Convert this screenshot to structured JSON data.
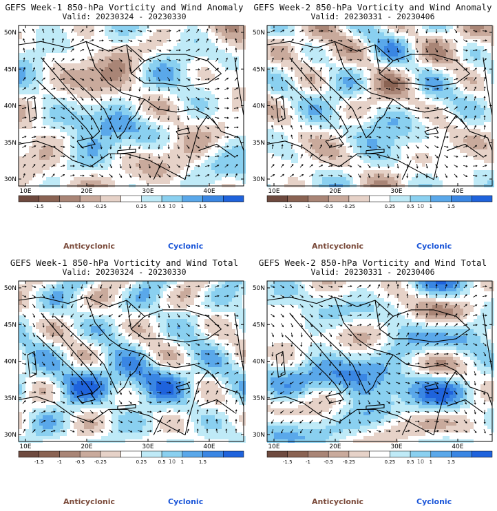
{
  "panels": [
    {
      "title": "GEFS Week-1 850-hPa Vorticity and Wind Anomaly",
      "valid": "Valid: 20230324 - 20230330",
      "seed": 11
    },
    {
      "title": "GEFS Week-2 850-hPa Vorticity and Wind Anomaly",
      "valid": "Valid: 20230331 - 20230406",
      "seed": 23
    },
    {
      "title": "GEFS Week-1 850-hPa Vorticity and Wind Total",
      "valid": "Valid: 20230324 - 20230330",
      "seed": 37
    },
    {
      "title": "GEFS Week-2 850-hPa Vorticity and Wind Total",
      "valid": "Valid: 20230331 - 20230406",
      "seed": 51
    }
  ],
  "lat_labels": [
    "50N",
    "45N",
    "40N",
    "35N",
    "30N"
  ],
  "lon_labels": [
    "10E",
    "20E",
    "30E",
    "40E"
  ],
  "colorbar": {
    "ticks": [
      "-1.5",
      "-1",
      "-0.5",
      "-0.25",
      "0.25",
      "0.5",
      "1",
      "1.5"
    ],
    "unit_label": "10",
    "colors": [
      "#6e4a3f",
      "#8a6353",
      "#a98576",
      "#c9aa9c",
      "#e6d2c8",
      "#ffffff",
      "#bfeaf7",
      "#8ad0f0",
      "#5aa8ea",
      "#3a86e3",
      "#1f63dc"
    ]
  },
  "legend": {
    "anticyclonic": "Anticyclonic",
    "cyclonic": "Cyclonic"
  }
}
